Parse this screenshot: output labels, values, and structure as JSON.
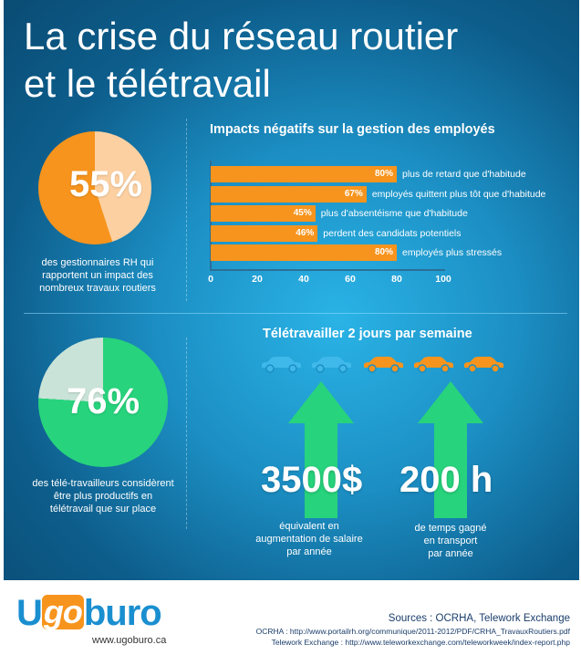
{
  "title": {
    "line1": "La crise du réseau routier",
    "line2": "et le télétravail"
  },
  "section1": {
    "pie_percent": "55%",
    "pie_fraction": 0.55,
    "pie_caption": [
      "des gestionnaires RH qui",
      "rapportent un impact des",
      "nombreux  travaux routiers"
    ]
  },
  "chart_data": {
    "type": "bar",
    "title": "Impacts négatifs sur la gestion des employés",
    "orientation": "horizontal",
    "categories": [
      "plus de retard que d'habitude",
      "employés quittent plus tôt que d'habitude",
      "plus d'absentéisme que d'habitude",
      "perdent des candidats potentiels",
      "employés plus stressés"
    ],
    "values": [
      80,
      67,
      45,
      46,
      80
    ],
    "value_labels": [
      "80%",
      "67%",
      "45%",
      "46%",
      "80%"
    ],
    "xlim": [
      0,
      100
    ],
    "x_ticks": [
      "0",
      "20",
      "40",
      "60",
      "80",
      "100"
    ],
    "bar_color": "#f7941d"
  },
  "section2": {
    "pie_percent": "76%",
    "pie_fraction": 0.76,
    "pie_caption": [
      "des télé-travailleurs considèrent",
      "être plus productifs en",
      "télétravail que sur place"
    ],
    "telework_title": "Télétravailler 2 jours par semaine",
    "cars": [
      "car-blue-icon",
      "car-blue-icon",
      "car-orange-icon",
      "car-orange-icon",
      "car-orange-icon"
    ],
    "stat1_value": "3500$",
    "stat1_caption": [
      "équivalent en",
      "augmentation de salaire",
      "par année"
    ],
    "stat2_value": "200 h",
    "stat2_caption": [
      "de temps gagné",
      "en transport",
      "par année"
    ]
  },
  "footer": {
    "logo_u": "U",
    "logo_go": "go",
    "logo_buro": "buro",
    "website": "www.ugoburo.ca",
    "sources_title": "Sources : OCRHA, Telework Exchange",
    "source1": "OCRHA : http://www.portailrh.org/communique/2011-2012/PDF/CRHA_TravauxRoutiers.pdf",
    "source2": "Telework Exchange : http://www.teleworkexchange.com/teleworkweek/index-report.php"
  },
  "colors": {
    "orange": "#f7941d",
    "peach": "#fcd0a1",
    "green": "#27d37c",
    "light_green": "#c9e3d8",
    "blue": "#1a8fd0",
    "car_blue": "#3fb8ea"
  }
}
